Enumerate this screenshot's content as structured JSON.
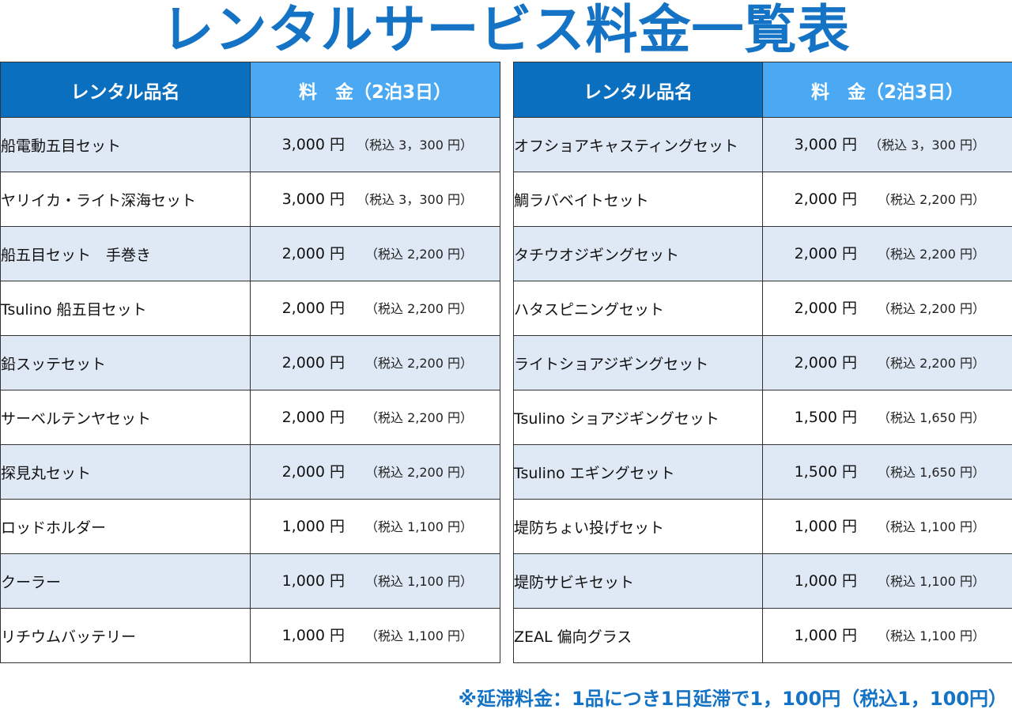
{
  "title": "レンタルサービス料金一覧表",
  "colors": {
    "title": "#1573c5",
    "header_name_bg": "#0b6fbf",
    "header_price_bg": "#4aa9f2",
    "row_alt_bg": "#dfe9f5"
  },
  "header": {
    "name": "レンタル品名",
    "price": "料　金（2泊3日）"
  },
  "left_rows": [
    {
      "name": "船電動五目セット",
      "price": "3,000 円",
      "tax": "（税込 3，300 円）"
    },
    {
      "name": "ヤリイカ・ライト深海セット",
      "price": "3,000 円",
      "tax": "（税込 3，300 円）"
    },
    {
      "name": "船五目セット　手巻き",
      "price": "2,000 円",
      "tax": "（税込 2,200 円）"
    },
    {
      "name": "Tsulino 船五目セット",
      "price": "2,000 円",
      "tax": "（税込 2,200 円）"
    },
    {
      "name": "鉛スッテセット",
      "price": "2,000 円",
      "tax": "（税込 2,200 円）"
    },
    {
      "name": "サーベルテンヤセット",
      "price": "2,000 円",
      "tax": "（税込 2,200 円）"
    },
    {
      "name": "探見丸セット",
      "price": "2,000 円",
      "tax": "（税込 2,200 円）"
    },
    {
      "name": "ロッドホルダー",
      "price": "1,000 円",
      "tax": "（税込 1,100 円）"
    },
    {
      "name": "クーラー",
      "price": "1,000 円",
      "tax": "（税込 1,100 円）"
    },
    {
      "name": "リチウムバッテリー",
      "price": "1,000 円",
      "tax": "（税込 1,100 円）"
    }
  ],
  "right_rows": [
    {
      "name": "オフショアキャスティングセット",
      "price": "3,000 円",
      "tax": "（税込 3，300 円）"
    },
    {
      "name": "鯛ラバベイトセット",
      "price": "2,000 円",
      "tax": "（税込 2,200 円）"
    },
    {
      "name": "タチウオジギングセット",
      "price": "2,000 円",
      "tax": "（税込 2,200 円）"
    },
    {
      "name": "ハタスピニングセット",
      "price": "2,000 円",
      "tax": "（税込 2,200 円）"
    },
    {
      "name": "ライトショアジギングセット",
      "price": "2,000 円",
      "tax": "（税込 2,200 円）"
    },
    {
      "name": "Tsulino ショアジギングセット",
      "price": "1,500 円",
      "tax": "（税込 1,650 円）"
    },
    {
      "name": "Tsulino エギングセット",
      "price": "1,500 円",
      "tax": "（税込 1,650 円）"
    },
    {
      "name": "堤防ちょい投げセット",
      "price": "1,000 円",
      "tax": "（税込 1,100 円）"
    },
    {
      "name": "堤防サビキセット",
      "price": "1,000 円",
      "tax": "（税込 1,100 円）"
    },
    {
      "name": "ZEAL 偏向グラス",
      "price": "1,000 円",
      "tax": "（税込 1,100 円）"
    }
  ],
  "footnote": "※延滞料金：1品につき1日延滞で1，100円（税込1，100円）"
}
